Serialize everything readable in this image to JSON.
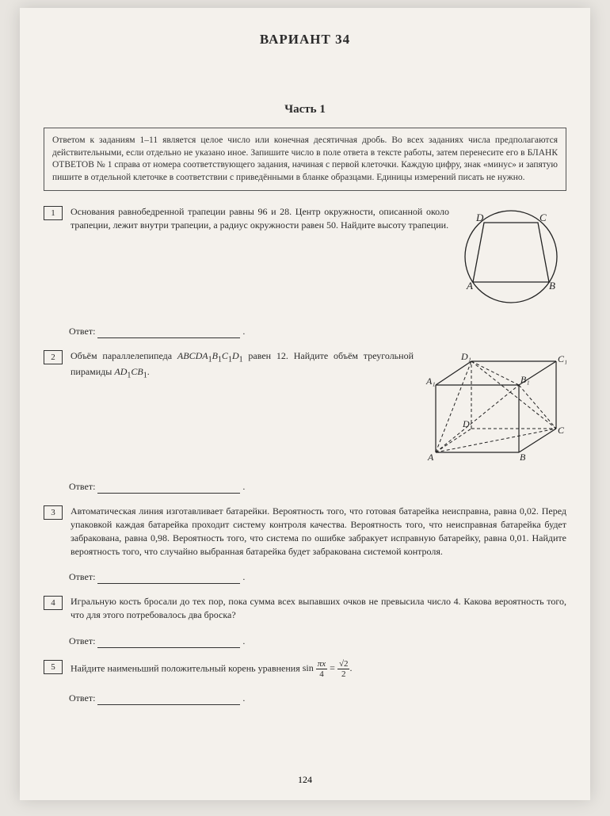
{
  "header": "ВАРИАНТ 34",
  "part": "Часть 1",
  "instructions": "Ответом к заданиям 1–11 является целое число или конечная десятичная дробь. Во всех заданиях числа предполагаются действительными, если отдельно не указано иное. Запишите число в поле ответа в тексте работы, затем перенесите его в БЛАНК ОТВЕТОВ № 1 справа от номера соответствующего задания, начиная с первой клеточки. Каждую цифру, знак «минус» и запятую пишите в отдельной клеточке в соответствии с приведёнными в бланке образцами. Единицы измерений писать не нужно.",
  "tasks": [
    {
      "num": "1",
      "text": "Основания равнобедренной трапеции равны 96 и 28. Центр окружности, описанной около трапеции, лежит внутри трапеции, а радиус окружности равен 50. Найдите высоту трапеции.",
      "answer": "Ответ:"
    },
    {
      "num": "2",
      "text_html": "Объём параллелепипеда <i>ABCDA</i><sub>1</sub><i>B</i><sub>1</sub><i>C</i><sub>1</sub><i>D</i><sub>1</sub> равен 12. Найдите объём треугольной пирамиды <i>AD</i><sub>1</sub><i>CB</i><sub>1</sub>.",
      "answer": "Ответ:"
    },
    {
      "num": "3",
      "text": "Автоматическая линия изготавливает батарейки. Вероятность того, что готовая батарейка неисправна, равна 0,02. Перед упаковкой каждая батарейка проходит систему контроля качества. Вероятность того, что неисправная батарейка будет забракована, равна 0,98. Вероятность того, что система по ошибке забракует исправную батарейку, равна 0,01. Найдите вероятность того, что случайно выбранная батарейка будет забракована системой контроля.",
      "answer": "Ответ:"
    },
    {
      "num": "4",
      "text": "Игральную кость бросали до тех пор, пока сумма всех выпавших очков не превысила число 4. Какова вероятность того, что для этого потребовалось два броска?",
      "answer": "Ответ:"
    },
    {
      "num": "5",
      "text_prefix": "Найдите наименьший положительный корень уравнения ",
      "answer": "Ответ:"
    }
  ],
  "page_number": "124",
  "diagram1": {
    "labels": {
      "A": "A",
      "B": "B",
      "C": "C",
      "D": "D"
    }
  },
  "diagram2": {
    "labels": {
      "A": "A",
      "B": "B",
      "C": "C",
      "D": "D",
      "A1": "A₁",
      "B1": "B₁",
      "C1": "C₁",
      "D1": "D₁"
    }
  },
  "equation": {
    "sin": "sin",
    "num1": "πx",
    "den1": "4",
    "num2": "√2",
    "den2": "2"
  },
  "colors": {
    "text": "#2a2a2a",
    "line": "#333333",
    "bg": "#f4f1ec"
  }
}
